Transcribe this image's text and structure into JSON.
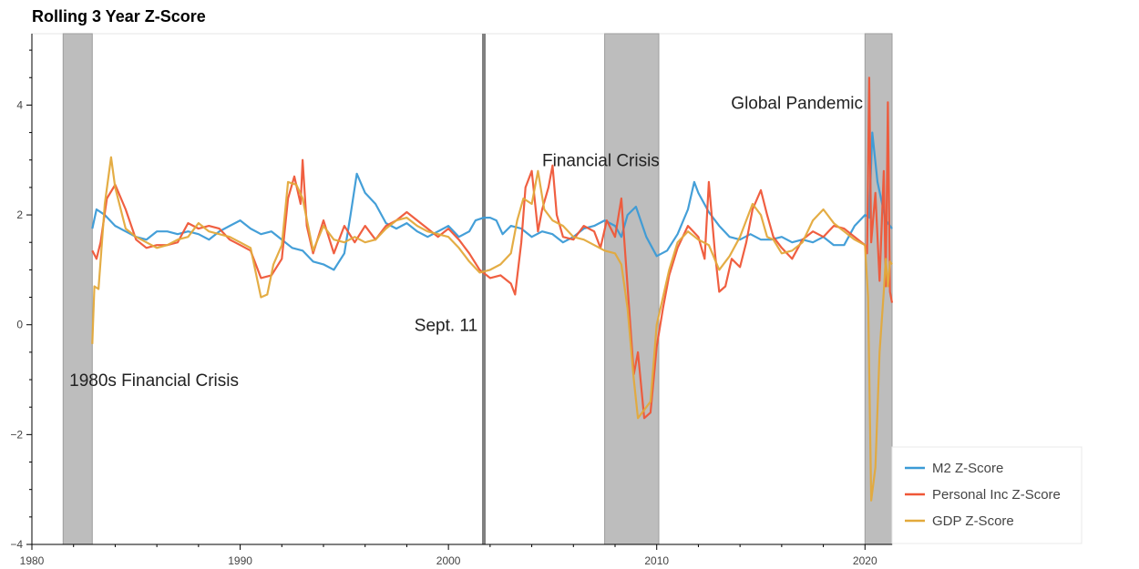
{
  "chart_data": {
    "type": "line",
    "title": "Rolling 3 Year Z-Score",
    "xlabel": "",
    "ylabel": "",
    "xlim": [
      1980.0,
      2021.3
    ],
    "ylim": [
      -4,
      5.3
    ],
    "x_ticks": [
      1980,
      1990,
      2000,
      2010,
      2020
    ],
    "y_ticks": [
      -4,
      -2,
      0,
      2,
      4
    ],
    "y_tick_labels": [
      "−4",
      "−2",
      "0",
      "2",
      "4"
    ],
    "legend_position": "bottom-right",
    "grid": false,
    "shaded_regions": [
      {
        "x0": 1981.5,
        "x1": 1982.9
      },
      {
        "x0": 2007.5,
        "x1": 2010.1
      },
      {
        "x0": 2020.0,
        "x1": 2021.3
      }
    ],
    "vertical_lines": [
      {
        "x": 2001.7
      }
    ],
    "annotations": [
      {
        "text": "1980s Financial Crisis",
        "x": 1981.8,
        "y": -1.0,
        "anchor": "start"
      },
      {
        "text": "Sept. 11",
        "x": 2001.4,
        "y": 0.0,
        "anchor": "end"
      },
      {
        "text": "Financial Crisis",
        "x": 2004.5,
        "y": 3.0,
        "anchor": "start"
      },
      {
        "text": "Global Pandemic",
        "x": 2019.9,
        "y": 4.05,
        "anchor": "end"
      }
    ],
    "series": [
      {
        "name": "M2 Z-Score",
        "color": "#3a9ad6",
        "points": [
          [
            1982.9,
            1.75
          ],
          [
            1983.1,
            2.1
          ],
          [
            1983.5,
            2.0
          ],
          [
            1984,
            1.8
          ],
          [
            1984.5,
            1.7
          ],
          [
            1985,
            1.6
          ],
          [
            1985.5,
            1.55
          ],
          [
            1986,
            1.7
          ],
          [
            1986.5,
            1.7
          ],
          [
            1987,
            1.65
          ],
          [
            1987.5,
            1.7
          ],
          [
            1988,
            1.65
          ],
          [
            1988.5,
            1.55
          ],
          [
            1989,
            1.7
          ],
          [
            1989.5,
            1.8
          ],
          [
            1990,
            1.9
          ],
          [
            1990.5,
            1.75
          ],
          [
            1991,
            1.65
          ],
          [
            1991.5,
            1.7
          ],
          [
            1992,
            1.55
          ],
          [
            1992.5,
            1.4
          ],
          [
            1993,
            1.35
          ],
          [
            1993.5,
            1.15
          ],
          [
            1994,
            1.1
          ],
          [
            1994.5,
            1.0
          ],
          [
            1995,
            1.3
          ],
          [
            1995.3,
            2.0
          ],
          [
            1995.6,
            2.75
          ],
          [
            1996,
            2.4
          ],
          [
            1996.5,
            2.2
          ],
          [
            1997,
            1.85
          ],
          [
            1997.5,
            1.75
          ],
          [
            1998,
            1.85
          ],
          [
            1998.5,
            1.7
          ],
          [
            1999,
            1.6
          ],
          [
            1999.5,
            1.7
          ],
          [
            2000,
            1.8
          ],
          [
            2000.5,
            1.6
          ],
          [
            2001,
            1.7
          ],
          [
            2001.3,
            1.9
          ],
          [
            2001.7,
            1.95
          ],
          [
            2002,
            1.95
          ],
          [
            2002.3,
            1.9
          ],
          [
            2002.6,
            1.65
          ],
          [
            2003,
            1.8
          ],
          [
            2003.5,
            1.75
          ],
          [
            2004,
            1.6
          ],
          [
            2004.5,
            1.7
          ],
          [
            2005,
            1.65
          ],
          [
            2005.5,
            1.5
          ],
          [
            2006,
            1.6
          ],
          [
            2006.5,
            1.75
          ],
          [
            2007,
            1.8
          ],
          [
            2007.5,
            1.9
          ],
          [
            2008,
            1.8
          ],
          [
            2008.3,
            1.6
          ],
          [
            2008.6,
            2.0
          ],
          [
            2009,
            2.15
          ],
          [
            2009.5,
            1.6
          ],
          [
            2010,
            1.25
          ],
          [
            2010.5,
            1.35
          ],
          [
            2011,
            1.65
          ],
          [
            2011.5,
            2.1
          ],
          [
            2011.8,
            2.6
          ],
          [
            2012,
            2.4
          ],
          [
            2012.5,
            2.05
          ],
          [
            2013,
            1.8
          ],
          [
            2013.5,
            1.6
          ],
          [
            2014,
            1.55
          ],
          [
            2014.5,
            1.65
          ],
          [
            2015,
            1.55
          ],
          [
            2015.5,
            1.55
          ],
          [
            2016,
            1.6
          ],
          [
            2016.5,
            1.5
          ],
          [
            2017,
            1.55
          ],
          [
            2017.5,
            1.5
          ],
          [
            2018,
            1.6
          ],
          [
            2018.5,
            1.45
          ],
          [
            2019,
            1.45
          ],
          [
            2019.5,
            1.8
          ],
          [
            2020,
            2.0
          ],
          [
            2020.2,
            1.95
          ],
          [
            2020.35,
            3.5
          ],
          [
            2020.6,
            2.6
          ],
          [
            2021,
            1.9
          ],
          [
            2021.3,
            1.75
          ]
        ]
      },
      {
        "name": "Personal Inc Z-Score",
        "color": "#ef5637",
        "points": [
          [
            1982.9,
            1.35
          ],
          [
            1983.1,
            1.2
          ],
          [
            1983.3,
            1.5
          ],
          [
            1983.6,
            2.3
          ],
          [
            1984,
            2.55
          ],
          [
            1984.5,
            2.1
          ],
          [
            1985,
            1.55
          ],
          [
            1985.5,
            1.4
          ],
          [
            1986,
            1.45
          ],
          [
            1986.5,
            1.45
          ],
          [
            1987,
            1.5
          ],
          [
            1987.5,
            1.85
          ],
          [
            1988,
            1.75
          ],
          [
            1988.5,
            1.8
          ],
          [
            1989,
            1.75
          ],
          [
            1989.5,
            1.55
          ],
          [
            1990,
            1.45
          ],
          [
            1990.5,
            1.35
          ],
          [
            1991,
            0.85
          ],
          [
            1991.5,
            0.9
          ],
          [
            1992,
            1.2
          ],
          [
            1992.3,
            2.3
          ],
          [
            1992.6,
            2.7
          ],
          [
            1992.9,
            2.2
          ],
          [
            1993,
            3.0
          ],
          [
            1993.2,
            1.8
          ],
          [
            1993.5,
            1.3
          ],
          [
            1994,
            1.9
          ],
          [
            1994.5,
            1.3
          ],
          [
            1995,
            1.8
          ],
          [
            1995.5,
            1.5
          ],
          [
            1996,
            1.8
          ],
          [
            1996.5,
            1.55
          ],
          [
            1997,
            1.8
          ],
          [
            1997.5,
            1.9
          ],
          [
            1998,
            2.05
          ],
          [
            1998.5,
            1.9
          ],
          [
            1999,
            1.75
          ],
          [
            1999.5,
            1.6
          ],
          [
            2000,
            1.75
          ],
          [
            2000.5,
            1.55
          ],
          [
            2001,
            1.3
          ],
          [
            2001.5,
            1.0
          ],
          [
            2002,
            0.85
          ],
          [
            2002.5,
            0.9
          ],
          [
            2003,
            0.75
          ],
          [
            2003.2,
            0.55
          ],
          [
            2003.5,
            1.5
          ],
          [
            2003.7,
            2.5
          ],
          [
            2004,
            2.8
          ],
          [
            2004.3,
            1.7
          ],
          [
            2004.5,
            2.1
          ],
          [
            2004.8,
            2.5
          ],
          [
            2005,
            2.9
          ],
          [
            2005.2,
            2.0
          ],
          [
            2005.5,
            1.6
          ],
          [
            2006,
            1.55
          ],
          [
            2006.5,
            1.8
          ],
          [
            2007,
            1.7
          ],
          [
            2007.3,
            1.4
          ],
          [
            2007.6,
            1.9
          ],
          [
            2008,
            1.6
          ],
          [
            2008.3,
            2.3
          ],
          [
            2008.6,
            0.7
          ],
          [
            2008.9,
            -0.9
          ],
          [
            2009.1,
            -0.5
          ],
          [
            2009.4,
            -1.7
          ],
          [
            2009.7,
            -1.6
          ],
          [
            2010,
            -0.4
          ],
          [
            2010.3,
            0.3
          ],
          [
            2010.6,
            0.9
          ],
          [
            2011,
            1.4
          ],
          [
            2011.5,
            1.8
          ],
          [
            2012,
            1.6
          ],
          [
            2012.3,
            1.2
          ],
          [
            2012.5,
            2.6
          ],
          [
            2012.8,
            1.3
          ],
          [
            2013,
            0.6
          ],
          [
            2013.3,
            0.7
          ],
          [
            2013.6,
            1.2
          ],
          [
            2014,
            1.05
          ],
          [
            2014.3,
            1.5
          ],
          [
            2014.6,
            2.1
          ],
          [
            2015,
            2.45
          ],
          [
            2015.3,
            2.0
          ],
          [
            2015.6,
            1.6
          ],
          [
            2016,
            1.4
          ],
          [
            2016.5,
            1.2
          ],
          [
            2017,
            1.55
          ],
          [
            2017.5,
            1.7
          ],
          [
            2018,
            1.6
          ],
          [
            2018.5,
            1.8
          ],
          [
            2019,
            1.75
          ],
          [
            2019.5,
            1.6
          ],
          [
            2020,
            1.45
          ],
          [
            2020.1,
            1.3
          ],
          [
            2020.2,
            4.5
          ],
          [
            2020.3,
            1.5
          ],
          [
            2020.5,
            2.4
          ],
          [
            2020.7,
            0.8
          ],
          [
            2020.9,
            2.8
          ],
          [
            2021.0,
            0.7
          ],
          [
            2021.1,
            4.05
          ],
          [
            2021.2,
            0.6
          ],
          [
            2021.3,
            0.4
          ]
        ]
      },
      {
        "name": "GDP Z-Score",
        "color": "#e3a93b",
        "points": [
          [
            1982.9,
            -0.35
          ],
          [
            1983.0,
            0.7
          ],
          [
            1983.2,
            0.65
          ],
          [
            1983.5,
            2.2
          ],
          [
            1983.8,
            3.05
          ],
          [
            1984,
            2.5
          ],
          [
            1984.5,
            1.75
          ],
          [
            1985,
            1.6
          ],
          [
            1985.5,
            1.5
          ],
          [
            1986,
            1.4
          ],
          [
            1986.5,
            1.45
          ],
          [
            1987,
            1.55
          ],
          [
            1987.5,
            1.6
          ],
          [
            1988,
            1.85
          ],
          [
            1988.5,
            1.7
          ],
          [
            1989,
            1.65
          ],
          [
            1989.5,
            1.6
          ],
          [
            1990,
            1.5
          ],
          [
            1990.5,
            1.4
          ],
          [
            1991,
            0.5
          ],
          [
            1991.3,
            0.55
          ],
          [
            1991.6,
            1.1
          ],
          [
            1992,
            1.45
          ],
          [
            1992.3,
            2.6
          ],
          [
            1992.7,
            2.55
          ],
          [
            1993,
            2.3
          ],
          [
            1993.5,
            1.35
          ],
          [
            1994,
            1.8
          ],
          [
            1994.5,
            1.55
          ],
          [
            1995,
            1.5
          ],
          [
            1995.5,
            1.6
          ],
          [
            1996,
            1.5
          ],
          [
            1996.5,
            1.55
          ],
          [
            1997,
            1.75
          ],
          [
            1997.5,
            1.9
          ],
          [
            1998,
            1.95
          ],
          [
            1998.5,
            1.8
          ],
          [
            1999,
            1.7
          ],
          [
            1999.5,
            1.65
          ],
          [
            2000,
            1.6
          ],
          [
            2000.5,
            1.4
          ],
          [
            2001,
            1.15
          ],
          [
            2001.5,
            0.95
          ],
          [
            2002,
            1.0
          ],
          [
            2002.5,
            1.1
          ],
          [
            2003,
            1.3
          ],
          [
            2003.3,
            1.9
          ],
          [
            2003.6,
            2.3
          ],
          [
            2004,
            2.2
          ],
          [
            2004.3,
            2.8
          ],
          [
            2004.6,
            2.1
          ],
          [
            2005,
            1.9
          ],
          [
            2005.5,
            1.8
          ],
          [
            2006,
            1.6
          ],
          [
            2006.5,
            1.55
          ],
          [
            2007,
            1.45
          ],
          [
            2007.5,
            1.35
          ],
          [
            2008,
            1.3
          ],
          [
            2008.3,
            1.1
          ],
          [
            2008.6,
            0.3
          ],
          [
            2008.9,
            -1.0
          ],
          [
            2009.1,
            -1.7
          ],
          [
            2009.4,
            -1.55
          ],
          [
            2009.7,
            -1.4
          ],
          [
            2010,
            0.0
          ],
          [
            2010.3,
            0.5
          ],
          [
            2010.6,
            1.0
          ],
          [
            2011,
            1.5
          ],
          [
            2011.5,
            1.7
          ],
          [
            2012,
            1.55
          ],
          [
            2012.5,
            1.45
          ],
          [
            2013,
            1.0
          ],
          [
            2013.5,
            1.25
          ],
          [
            2014,
            1.6
          ],
          [
            2014.3,
            1.9
          ],
          [
            2014.6,
            2.2
          ],
          [
            2015,
            2.0
          ],
          [
            2015.3,
            1.6
          ],
          [
            2015.6,
            1.55
          ],
          [
            2016,
            1.3
          ],
          [
            2016.5,
            1.35
          ],
          [
            2017,
            1.5
          ],
          [
            2017.5,
            1.9
          ],
          [
            2018,
            2.1
          ],
          [
            2018.5,
            1.85
          ],
          [
            2019,
            1.7
          ],
          [
            2019.5,
            1.55
          ],
          [
            2020,
            1.45
          ],
          [
            2020.15,
            0.5
          ],
          [
            2020.3,
            -3.2
          ],
          [
            2020.5,
            -2.6
          ],
          [
            2020.7,
            -0.5
          ],
          [
            2020.9,
            0.6
          ],
          [
            2021.0,
            1.2
          ],
          [
            2021.1,
            0.7
          ],
          [
            2021.2,
            1.15
          ],
          [
            2021.3,
            1.1
          ]
        ]
      }
    ]
  }
}
